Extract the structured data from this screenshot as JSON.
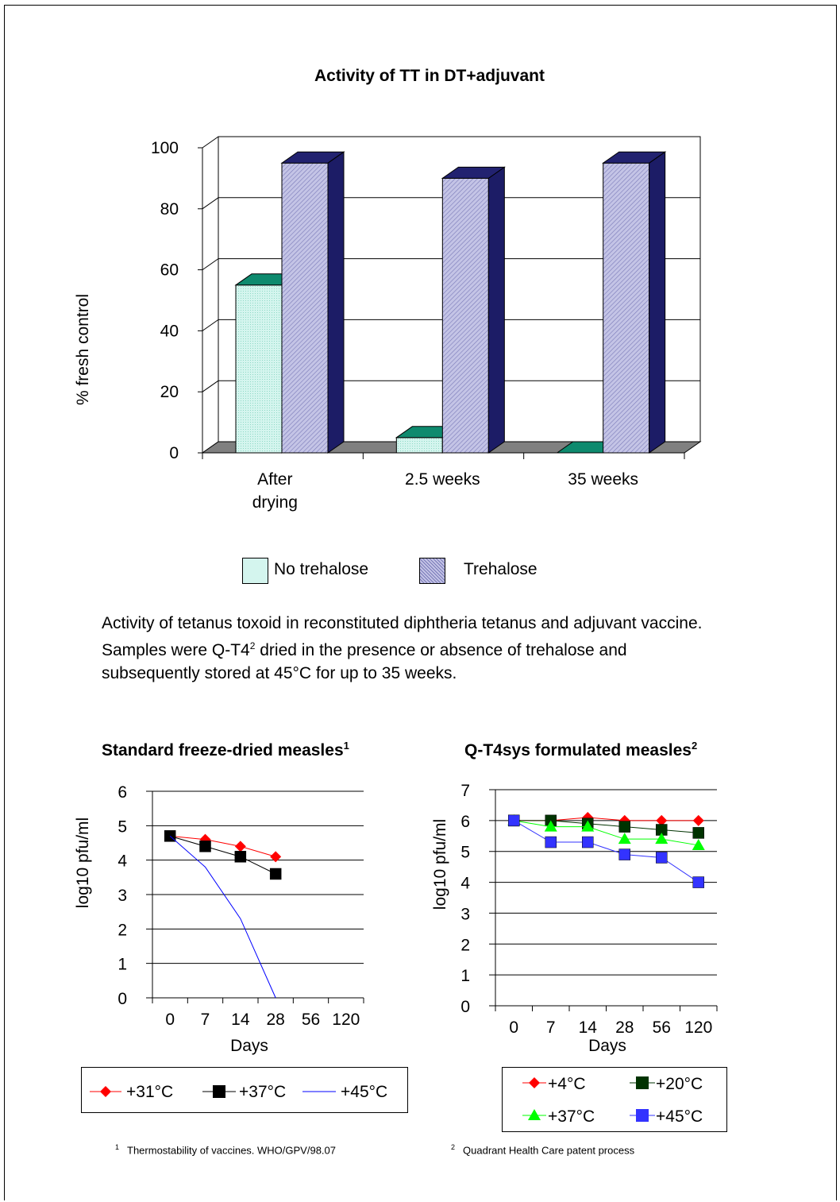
{
  "caption": {
    "line1": "Activity of tetanus toxoid in reconstituted diphtheria tetanus and adjuvant vaccine.",
    "line2_pre": "Samples were Q-T4",
    "line2_sup": "2",
    "line2_post": " dried in the presence or absence of trehalose and",
    "line3": "subsequently stored at 45°C for up to 35 weeks."
  },
  "footnotes": [
    {
      "mark": "1",
      "text": "Thermostability of vaccines. WHO/GPV/98.07"
    },
    {
      "mark": "2",
      "text": "Quadrant Health Care patent process"
    }
  ],
  "chart_data": [
    {
      "type": "bar",
      "title": "Activity of TT in DT+adjuvant",
      "xlabel": "",
      "ylabel": "% fresh control",
      "ylim": [
        0,
        100
      ],
      "yticks": [
        "0",
        "20",
        "40",
        "60",
        "80",
        "100"
      ],
      "categories": [
        "After drying",
        "2.5 weeks",
        "35 weeks"
      ],
      "series": [
        {
          "name": "No trehalose",
          "values": [
            55,
            5,
            0
          ]
        },
        {
          "name": "Trehalose",
          "values": [
            95,
            90,
            95
          ]
        }
      ],
      "style": "3d-clustered",
      "grid": true,
      "legend": "bottom",
      "colors": {
        "no_trehalose_front": "#cff2ea",
        "no_trehalose_top": "#0e8a6e",
        "trehalose_front": "#b6b6dc",
        "trehalose_side": "#1c1c66",
        "floor": "#808080"
      }
    },
    {
      "type": "line",
      "title": "Standard freeze-dried measles",
      "title_sup": "1",
      "xlabel": "Days",
      "ylabel": "log10 pfu/ml",
      "ylim": [
        0,
        6
      ],
      "yticks": [
        "0",
        "1",
        "2",
        "3",
        "4",
        "5",
        "6"
      ],
      "x": [
        "0",
        "7",
        "14",
        "28",
        "56",
        "120"
      ],
      "series": [
        {
          "name": "+31°C",
          "marker": "diamond",
          "color": "#ff0000",
          "values": [
            4.7,
            4.6,
            4.4,
            4.1,
            null,
            null
          ]
        },
        {
          "name": "+37°C",
          "marker": "square",
          "color": "#000000",
          "values": [
            4.7,
            4.4,
            4.1,
            3.6,
            null,
            null
          ]
        },
        {
          "name": "+45°C",
          "marker": "none",
          "color": "#0000ff",
          "values": [
            4.7,
            3.8,
            2.3,
            0,
            null,
            null
          ]
        }
      ],
      "grid": true,
      "legend": "bottom"
    },
    {
      "type": "line",
      "title": "Q-T4sys formulated measles",
      "title_sup": "2",
      "xlabel": "Days",
      "ylabel": "log10 pfu/ml",
      "ylim": [
        0,
        7
      ],
      "yticks": [
        "0",
        "1",
        "2",
        "3",
        "4",
        "5",
        "6",
        "7"
      ],
      "x": [
        "0",
        "7",
        "14",
        "28",
        "56",
        "120"
      ],
      "series": [
        {
          "name": "+4°C",
          "marker": "diamond",
          "color": "#ff0000",
          "values": [
            6.0,
            6.0,
            6.1,
            6.0,
            6.0,
            6.0
          ]
        },
        {
          "name": "+20°C",
          "marker": "square",
          "color": "#003300",
          "values": [
            6.0,
            6.0,
            5.9,
            5.8,
            5.7,
            5.6
          ]
        },
        {
          "name": "+37°C",
          "marker": "triangle",
          "color": "#00ff00",
          "values": [
            6.0,
            5.8,
            5.8,
            5.4,
            5.4,
            5.2
          ]
        },
        {
          "name": "+45°C",
          "marker": "square",
          "color": "#3333ff",
          "values": [
            6.0,
            5.3,
            5.3,
            4.9,
            4.8,
            4.0
          ]
        }
      ],
      "grid": true,
      "legend": "bottom"
    }
  ]
}
